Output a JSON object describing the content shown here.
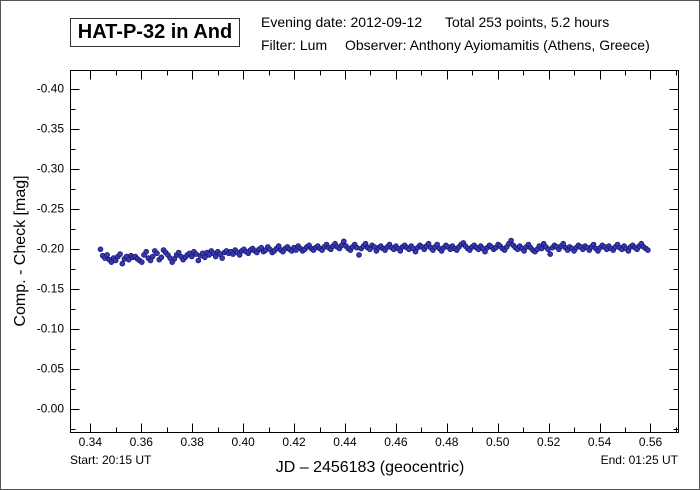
{
  "header": {
    "title": "HAT-P-32 in And",
    "line1_date": "Evening date: 2012-09-12",
    "line1_total": "Total 253 points, 5.2 hours",
    "line2_filter": "Filter: Lum",
    "line2_observer": "Observer: Anthony Ayiomamitis (Athens, Greece)"
  },
  "footer": {
    "start": "Start: 20:15 UT",
    "end": "End: 01:25 UT"
  },
  "colors": {
    "marker_fill": "#3a3ab0",
    "marker_edge": "#141470",
    "axis": "#000000"
  },
  "chart_data": {
    "type": "scatter",
    "title": "HAT-P-32 in And",
    "xlabel": "JD – 2456183  (geocentric)",
    "ylabel": "Comp. - Check [mag]",
    "xlim": [
      0.3322,
      0.571
    ],
    "ylim": [
      -0.4225,
      0.03
    ],
    "y_inverted": true,
    "grid": false,
    "xticks": [
      "0.34",
      "0.36",
      "0.38",
      "0.40",
      "0.42",
      "0.44",
      "0.46",
      "0.48",
      "0.50",
      "0.52",
      "0.54",
      "0.56"
    ],
    "yticks": [
      "-0.40",
      "-0.35",
      "-0.30",
      "-0.25",
      "-0.20",
      "-0.15",
      "-0.10",
      "-0.05",
      "-0.00"
    ],
    "x_start": 0.344,
    "x_end": 0.559,
    "n_points": 253,
    "y": [
      -0.199,
      -0.191,
      -0.188,
      -0.192,
      -0.186,
      -0.183,
      -0.188,
      -0.185,
      -0.19,
      -0.193,
      -0.181,
      -0.187,
      -0.19,
      -0.186,
      -0.191,
      -0.189,
      -0.19,
      -0.187,
      -0.185,
      -0.183,
      -0.192,
      -0.196,
      -0.188,
      -0.185,
      -0.19,
      -0.197,
      -0.194,
      -0.186,
      -0.189,
      -0.198,
      -0.195,
      -0.192,
      -0.188,
      -0.183,
      -0.187,
      -0.192,
      -0.195,
      -0.19,
      -0.186,
      -0.189,
      -0.192,
      -0.194,
      -0.19,
      -0.196,
      -0.193,
      -0.185,
      -0.191,
      -0.194,
      -0.189,
      -0.195,
      -0.192,
      -0.197,
      -0.194,
      -0.19,
      -0.196,
      -0.193,
      -0.188,
      -0.195,
      -0.197,
      -0.194,
      -0.196,
      -0.193,
      -0.198,
      -0.195,
      -0.192,
      -0.197,
      -0.199,
      -0.196,
      -0.194,
      -0.198,
      -0.2,
      -0.197,
      -0.195,
      -0.199,
      -0.201,
      -0.196,
      -0.198,
      -0.202,
      -0.199,
      -0.195,
      -0.197,
      -0.2,
      -0.203,
      -0.198,
      -0.196,
      -0.2,
      -0.202,
      -0.199,
      -0.197,
      -0.201,
      -0.198,
      -0.203,
      -0.2,
      -0.197,
      -0.199,
      -0.202,
      -0.204,
      -0.2,
      -0.198,
      -0.201,
      -0.203,
      -0.2,
      -0.198,
      -0.202,
      -0.205,
      -0.201,
      -0.199,
      -0.203,
      -0.206,
      -0.202,
      -0.2,
      -0.204,
      -0.209,
      -0.203,
      -0.2,
      -0.198,
      -0.202,
      -0.205,
      -0.201,
      -0.192,
      -0.2,
      -0.203,
      -0.206,
      -0.201,
      -0.199,
      -0.204,
      -0.202,
      -0.197,
      -0.201,
      -0.203,
      -0.2,
      -0.198,
      -0.202,
      -0.205,
      -0.201,
      -0.199,
      -0.203,
      -0.2,
      -0.197,
      -0.202,
      -0.204,
      -0.201,
      -0.199,
      -0.203,
      -0.2,
      -0.196,
      -0.201,
      -0.204,
      -0.202,
      -0.199,
      -0.203,
      -0.206,
      -0.201,
      -0.198,
      -0.202,
      -0.205,
      -0.2,
      -0.197,
      -0.201,
      -0.204,
      -0.202,
      -0.199,
      -0.203,
      -0.2,
      -0.198,
      -0.202,
      -0.205,
      -0.207,
      -0.203,
      -0.2,
      -0.198,
      -0.202,
      -0.204,
      -0.201,
      -0.199,
      -0.203,
      -0.2,
      -0.196,
      -0.201,
      -0.204,
      -0.202,
      -0.199,
      -0.201,
      -0.205,
      -0.203,
      -0.2,
      -0.198,
      -0.202,
      -0.206,
      -0.21,
      -0.204,
      -0.201,
      -0.199,
      -0.203,
      -0.2,
      -0.197,
      -0.202,
      -0.205,
      -0.201,
      -0.198,
      -0.196,
      -0.199,
      -0.203,
      -0.2,
      -0.206,
      -0.202,
      -0.199,
      -0.193,
      -0.201,
      -0.204,
      -0.202,
      -0.199,
      -0.203,
      -0.206,
      -0.201,
      -0.198,
      -0.202,
      -0.2,
      -0.197,
      -0.201,
      -0.204,
      -0.202,
      -0.199,
      -0.203,
      -0.201,
      -0.198,
      -0.202,
      -0.205,
      -0.2,
      -0.197,
      -0.201,
      -0.204,
      -0.202,
      -0.199,
      -0.203,
      -0.2,
      -0.198,
      -0.202,
      -0.205,
      -0.201,
      -0.199,
      -0.203,
      -0.2,
      -0.197,
      -0.202,
      -0.204,
      -0.201,
      -0.199,
      -0.203,
      -0.206,
      -0.202,
      -0.2,
      -0.198
    ]
  }
}
